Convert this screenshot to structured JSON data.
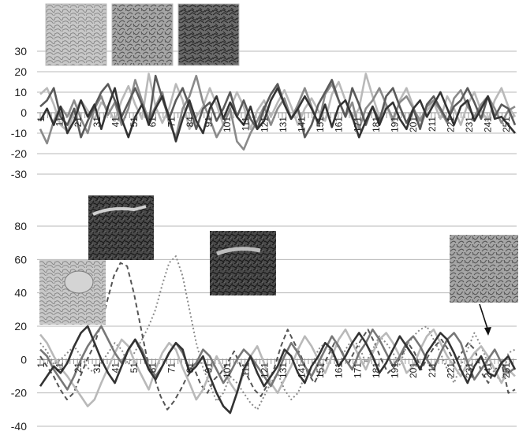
{
  "chart_data": [
    {
      "type": "line",
      "title": "",
      "xlabel": "",
      "ylabel": "",
      "ylim": [
        -30,
        30
      ],
      "yticks": [
        30,
        20,
        10,
        0,
        -10,
        -20,
        -30
      ],
      "x_tick_labels": [
        "1",
        "11",
        "21",
        "31",
        "41",
        "51",
        "61",
        "71",
        "84",
        "91",
        "101",
        "111",
        "121",
        "131",
        "141",
        "151",
        "161",
        "171",
        "181",
        "191",
        "201",
        "211",
        "221",
        "231",
        "241",
        "251"
      ],
      "grid": true,
      "legend": "none",
      "thumbnails": 3,
      "series": [
        {
          "color": "#b9b9b9",
          "values": [
            9,
            12,
            4,
            -6,
            -9,
            0,
            6,
            1,
            -3,
            5,
            2,
            -4,
            6,
            13,
            4,
            -3,
            19,
            3,
            -5,
            2,
            14,
            6,
            -8,
            -2,
            3,
            12,
            4,
            -6,
            2,
            10,
            3,
            -8,
            1,
            6,
            -2,
            5,
            11,
            3,
            -6,
            2,
            7,
            1,
            -4,
            9,
            15,
            6,
            -3,
            2,
            19,
            8,
            -2,
            4,
            -5,
            6,
            12,
            3,
            -7,
            1,
            5,
            -3,
            8,
            2,
            -6,
            4,
            10,
            1,
            -4,
            6,
            12,
            3,
            -2
          ]
        },
        {
          "color": "#8a8a8a",
          "values": [
            -8,
            -15,
            -4,
            3,
            -2,
            6,
            -3,
            -10,
            2,
            8,
            -1,
            5,
            -6,
            2,
            16,
            6,
            -4,
            3,
            10,
            -5,
            -12,
            2,
            8,
            18,
            5,
            -3,
            -12,
            -6,
            2,
            -14,
            -18,
            -10,
            -4,
            3,
            -6,
            2,
            7,
            -3,
            4,
            12,
            3,
            -6,
            9,
            14,
            6,
            -2,
            5,
            -8,
            2,
            6,
            12,
            4,
            -3,
            5,
            8,
            2,
            -4,
            3,
            6,
            1,
            -5,
            7,
            11,
            3,
            -2,
            4,
            8,
            2,
            -5,
            1,
            3
          ]
        },
        {
          "color": "#5a5a5a",
          "values": [
            3,
            6,
            12,
            -2,
            -6,
            2,
            -12,
            -4,
            3,
            10,
            14,
            6,
            -2,
            5,
            12,
            4,
            -5,
            18,
            7,
            -3,
            6,
            12,
            3,
            -8,
            2,
            5,
            -4,
            2,
            10,
            -2,
            6,
            -3,
            -8,
            2,
            9,
            14,
            4,
            -3,
            2,
            -12,
            -6,
            4,
            10,
            16,
            6,
            -2,
            12,
            4,
            -6,
            3,
            -4,
            8,
            12,
            3,
            -5,
            2,
            -8,
            4,
            8,
            2,
            -4,
            3,
            6,
            12,
            5,
            -3,
            8,
            -2,
            4,
            2,
            -6
          ]
        },
        {
          "color": "#333333",
          "values": [
            -4,
            2,
            -6,
            3,
            -10,
            -4,
            6,
            -2,
            4,
            -8,
            3,
            12,
            -3,
            -12,
            -2,
            4,
            -6,
            2,
            8,
            -2,
            -14,
            -3,
            6,
            -4,
            -10,
            2,
            8,
            -3,
            5,
            -2,
            -6,
            3,
            -8,
            -4,
            6,
            12,
            4,
            -3,
            2,
            8,
            2,
            -5,
            4,
            -7,
            3,
            6,
            -2,
            -12,
            -4,
            3,
            -6,
            2,
            5,
            -3,
            -8,
            2,
            6,
            -2,
            4,
            10,
            2,
            -6,
            3,
            6,
            -4,
            2,
            8,
            -3,
            -2,
            -6,
            -10
          ]
        }
      ]
    },
    {
      "type": "line",
      "title": "",
      "xlabel": "",
      "ylabel": "",
      "ylim": [
        -40,
        80
      ],
      "yticks": [
        80,
        60,
        40,
        20,
        0,
        -20,
        -40
      ],
      "x_tick_labels": [
        "1",
        "11",
        "21",
        "31",
        "41",
        "51",
        "61",
        "71",
        "81",
        "91",
        "101",
        "111",
        "121",
        "131",
        "141",
        "151",
        "161",
        "171",
        "181",
        "191",
        "201",
        "211",
        "221",
        "231",
        "241",
        "251"
      ],
      "grid": true,
      "legend": "none",
      "thumbnails": 3,
      "series": [
        {
          "color": "#555555",
          "dash": "dashed",
          "values": [
            2,
            -4,
            -10,
            -18,
            -24,
            -20,
            -10,
            0,
            8,
            20,
            35,
            50,
            58,
            56,
            40,
            20,
            0,
            -10,
            -22,
            -30,
            -25,
            -18,
            -10,
            -5,
            -15,
            -20,
            -12,
            -8,
            -2,
            5,
            -4,
            -10,
            -18,
            -22,
            -15,
            -5,
            8,
            18,
            10,
            2,
            -8,
            -14,
            -6,
            2,
            10,
            6,
            -3,
            5,
            12,
            18,
            10,
            0,
            -8,
            -4,
            2,
            10,
            4,
            -6,
            2,
            8,
            12,
            6,
            -2,
            4,
            10,
            6,
            -8,
            -14,
            -6,
            -2,
            -20,
            -18
          ]
        },
        {
          "color": "#8a8a8a",
          "dash": "dotted",
          "values": [
            10,
            5,
            -3,
            0,
            4,
            8,
            2,
            -5,
            -8,
            -2,
            4,
            10,
            6,
            -3,
            5,
            12,
            20,
            30,
            45,
            58,
            62,
            50,
            30,
            10,
            -5,
            -15,
            -25,
            -20,
            -10,
            -14,
            -20,
            -26,
            -30,
            -22,
            -14,
            -8,
            -18,
            -24,
            -20,
            -10,
            -4,
            6,
            10,
            4,
            -4,
            6,
            12,
            8,
            -2,
            6,
            14,
            10,
            4,
            -3,
            8,
            14,
            18,
            20,
            12,
            4,
            -6,
            -14,
            -4,
            6,
            16,
            8,
            -2,
            -8,
            -14,
            4,
            6
          ]
        },
        {
          "color": "#b9b9b9",
          "dash": "solid",
          "values": [
            15,
            10,
            2,
            -5,
            -10,
            -16,
            -22,
            -28,
            -24,
            -14,
            -5,
            4,
            12,
            8,
            -2,
            -10,
            -18,
            -6,
            4,
            10,
            6,
            -5,
            -14,
            -24,
            -18,
            -8,
            2,
            -6,
            -14,
            -20,
            -8,
            2,
            8,
            -2,
            -14,
            -20,
            -12,
            -4,
            6,
            14,
            8,
            0,
            -8,
            2,
            12,
            18,
            10,
            2,
            -6,
            4,
            12,
            16,
            10,
            2,
            -8,
            -4,
            6,
            14,
            18,
            10,
            2,
            -4,
            -10,
            -2,
            4,
            8,
            2,
            -6,
            -14,
            -6,
            -10
          ]
        },
        {
          "color": "#777777",
          "dash": "solid",
          "values": [
            6,
            2,
            -6,
            -12,
            -18,
            -10,
            0,
            8,
            14,
            20,
            12,
            4,
            -2,
            6,
            12,
            6,
            -4,
            -10,
            -4,
            4,
            10,
            4,
            -6,
            -2,
            6,
            2,
            -6,
            -14,
            -8,
            0,
            6,
            2,
            -4,
            -10,
            -16,
            -8,
            2,
            10,
            4,
            -4,
            -10,
            -2,
            6,
            14,
            8,
            0,
            -6,
            4,
            10,
            18,
            12,
            4,
            -4,
            2,
            10,
            14,
            8,
            0,
            -6,
            4,
            12,
            16,
            10,
            -2,
            -12,
            -6,
            0,
            6,
            -2,
            -8,
            -5
          ]
        },
        {
          "color": "#333333",
          "dash": "solid",
          "values": [
            -16,
            -10,
            -4,
            -8,
            -2,
            8,
            16,
            20,
            10,
            0,
            -8,
            -14,
            -4,
            6,
            12,
            4,
            -6,
            -12,
            -4,
            4,
            10,
            6,
            -8,
            -4,
            2,
            -10,
            -20,
            -28,
            -32,
            -20,
            -6,
            2,
            -8,
            -16,
            -10,
            -4,
            6,
            2,
            -8,
            -14,
            -4,
            2,
            10,
            6,
            -4,
            2,
            10,
            16,
            10,
            2,
            -8,
            -2,
            6,
            14,
            8,
            2,
            -6,
            4,
            10,
            16,
            12,
            4,
            -6,
            -14,
            -4,
            2,
            -8,
            -10,
            -2,
            2,
            -6
          ]
        }
      ]
    }
  ]
}
